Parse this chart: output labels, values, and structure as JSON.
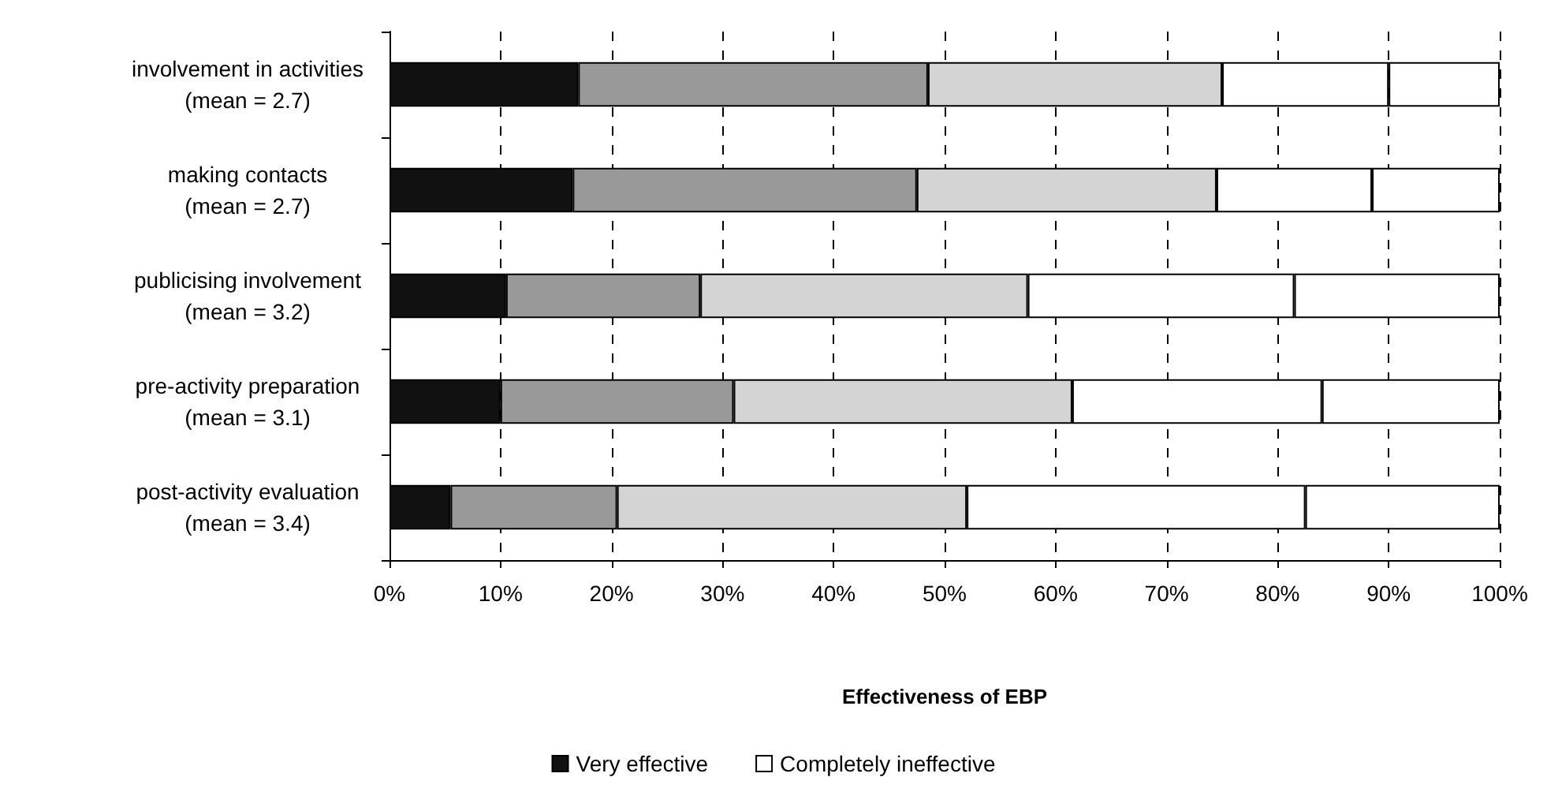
{
  "chart_data": {
    "type": "bar",
    "orientation": "horizontal",
    "stacked": true,
    "xlabel": "Effectiveness of EBP",
    "categories": [
      "involvement in activities\n(mean = 2.7)",
      "making contacts\n(mean = 2.7)",
      "publicising involvement\n(mean = 3.2)",
      "pre-activity preparation\n(mean = 3.1)",
      "post-activity evaluation\n(mean = 3.4)"
    ],
    "series": [
      {
        "name": "Very effective",
        "color": "#111111",
        "values": [
          17,
          16.5,
          10.5,
          10,
          5.5
        ]
      },
      {
        "color": "#999999",
        "values": [
          31.5,
          31,
          17.5,
          21,
          15
        ]
      },
      {
        "color": "#d4d4d4",
        "values": [
          26.5,
          27,
          29.5,
          30.5,
          31.5
        ]
      },
      {
        "color": "#ffffff",
        "values": [
          15,
          14,
          24,
          22.5,
          30.5
        ]
      },
      {
        "name": "Completely ineffective",
        "color": "#ffffff",
        "values": [
          10,
          11.5,
          18.5,
          16,
          17.5
        ]
      }
    ],
    "xlim": [
      0,
      100
    ],
    "xticks": [
      {
        "value": 0,
        "label": "0%"
      },
      {
        "value": 10,
        "label": "10%"
      },
      {
        "value": 20,
        "label": "20%"
      },
      {
        "value": 30,
        "label": "30%"
      },
      {
        "value": 40,
        "label": "40%"
      },
      {
        "value": 50,
        "label": "50%"
      },
      {
        "value": 60,
        "label": "60%"
      },
      {
        "value": 70,
        "label": "70%"
      },
      {
        "value": 80,
        "label": "80%"
      },
      {
        "value": 90,
        "label": "90%"
      },
      {
        "value": 100,
        "label": "100%"
      }
    ],
    "grid": "x",
    "legend": "bottom"
  }
}
